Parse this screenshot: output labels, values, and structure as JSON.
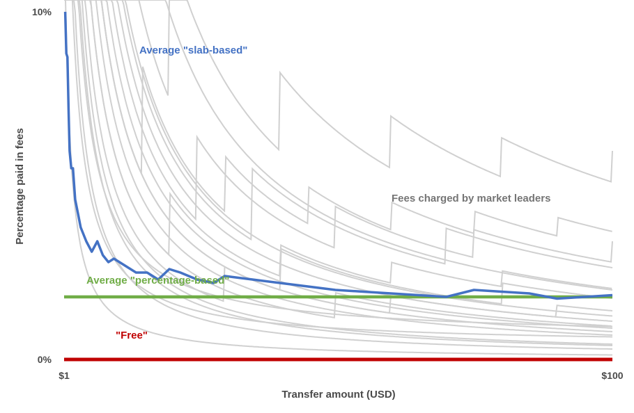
{
  "chart_data": {
    "type": "line",
    "xlabel": "Transfer amount (USD)",
    "ylabel": "Percentage paid in fees",
    "x_ticks": [
      "$1",
      "$100"
    ],
    "y_ticks": [
      "0%",
      "10%"
    ],
    "xlim": [
      1,
      100
    ],
    "ylim": [
      0,
      10
    ],
    "grid": false,
    "legend": "none",
    "annotations": {
      "slab": "Average \"slab-based\"",
      "leaders": "Fees charged by market leaders",
      "percentage": "Average \"percentage-based\"",
      "free": "\"Free\""
    },
    "colors": {
      "slab": "#4472c4",
      "percentage": "#70ad47",
      "free": "#c00000",
      "leaders": "#d0d0d0",
      "leaders_label": "#757575",
      "axis_text": "#4a4a4a"
    },
    "leader_fees": [
      {
        "fee": 0.3,
        "slab": 0
      },
      {
        "fee": 0.4,
        "slab": 0
      },
      {
        "fee": 0.8,
        "slab": 0
      },
      {
        "fee": 0.9,
        "slab": 0
      },
      {
        "fee": 0.13,
        "slab": 0
      },
      {
        "fee": 0.7,
        "slab": 0
      },
      {
        "fee": 0.44,
        "slab": 0
      },
      {
        "fee": 1.1,
        "slab": 0
      },
      {
        "fee": 1.25,
        "slab": 0
      },
      {
        "fee": 0.5,
        "slab": 30,
        "start": 1.5
      },
      {
        "fee": 1.0,
        "slab": 25,
        "start": 2.0
      },
      {
        "fee": 1.5,
        "slab": 20,
        "start": 2.5
      },
      {
        "fee": 1.2,
        "slab": 35,
        "start": 3.0
      },
      {
        "fee": 0.8,
        "slab": 40,
        "start": 2.2
      },
      {
        "fee": 0.6,
        "slab": 50,
        "start": 1.8
      },
      {
        "fee": 0.25,
        "slab": 0,
        "floor": 0.004
      },
      {
        "fee": 0.35,
        "slab": 0,
        "floor": 0.006
      },
      {
        "fee": 0.8,
        "slab": 15,
        "start": 1.2
      },
      {
        "fee": 0.6,
        "slab": 20,
        "start": 1.4
      },
      {
        "fee": 2.0,
        "slab": 0
      }
    ],
    "series": [
      {
        "name": "Average \"slab-based\"",
        "x": [
          1.2,
          1.4,
          1.6,
          1.8,
          2.0,
          2.3,
          2.6,
          3,
          3.5,
          4,
          5,
          6,
          7,
          8,
          9,
          10,
          12,
          14,
          16,
          18,
          20,
          22,
          25,
          28,
          30,
          35,
          40,
          45,
          50,
          55,
          60,
          65,
          70,
          75,
          80,
          85,
          90,
          95,
          100
        ],
        "y": [
          10.0,
          8.8,
          8.7,
          7.2,
          6.0,
          5.5,
          5.5,
          4.6,
          4.2,
          3.8,
          3.4,
          3.1,
          3.4,
          3.0,
          2.8,
          2.9,
          2.7,
          2.5,
          2.5,
          2.3,
          2.6,
          2.5,
          2.3,
          2.2,
          2.4,
          2.3,
          2.2,
          2.1,
          2.0,
          1.95,
          1.9,
          1.85,
          1.8,
          2.0,
          1.95,
          1.9,
          1.75,
          1.8,
          1.85
        ]
      },
      {
        "name": "Average \"percentage-based\"",
        "x": [
          1,
          100
        ],
        "y": [
          1.8,
          1.8
        ]
      },
      {
        "name": "\"Free\"",
        "x": [
          1,
          100
        ],
        "y": [
          0,
          0
        ]
      }
    ]
  }
}
